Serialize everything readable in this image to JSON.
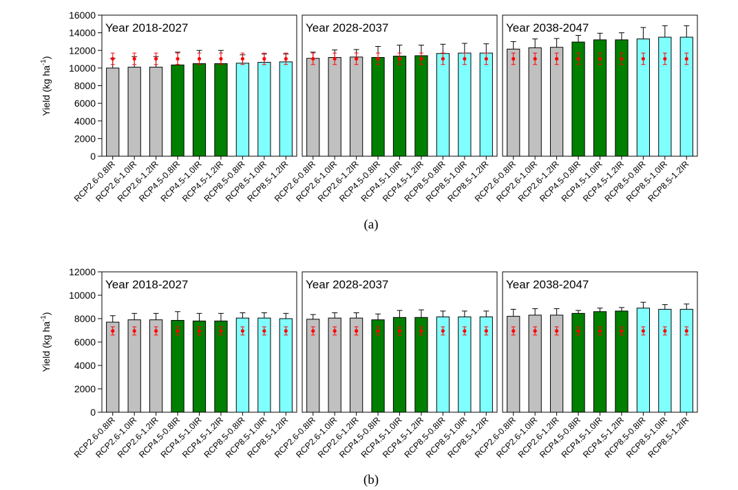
{
  "figure_captions": [
    "(a)",
    "(b)"
  ],
  "colors": {
    "RCP2.6": "#c0c0c0",
    "RCP4.5": "#007f00",
    "RCP8.5": "#80ffff",
    "observed_marker": "#ff0000",
    "axis": "#000000"
  },
  "chart_data": [
    {
      "type": "bar",
      "caption": "(a)",
      "ylabel_main": "Yield (kg ha",
      "ylabel_sup": "-1",
      "ylabel_close": ")",
      "ylim": [
        0,
        16000
      ],
      "yticks": [
        "0",
        "2000",
        "4000",
        "6000",
        "8000",
        "10000",
        "12000",
        "14000",
        "16000"
      ],
      "categories": [
        "RCP2.6-0.8IR",
        "RCP2.6-1.0IR",
        "RCP2.6-1.2IR",
        "RCP4.5-0.8IR",
        "RCP4.5-1.0IR",
        "RCP4.5-1.2IR",
        "RCP8.5-0.8IR",
        "RCP8.5-1.0IR",
        "RCP8.5-1.2IR"
      ],
      "scenario_of_category": [
        "RCP2.6",
        "RCP2.6",
        "RCP2.6",
        "RCP4.5",
        "RCP4.5",
        "RCP4.5",
        "RCP8.5",
        "RCP8.5",
        "RCP8.5"
      ],
      "panels": [
        {
          "title": "Year 2018-2027",
          "values": [
            10000,
            10100,
            10100,
            10350,
            10500,
            10500,
            10550,
            10650,
            10700
          ],
          "error_upper": [
            11100,
            11300,
            11300,
            11800,
            12000,
            12000,
            11500,
            11600,
            11600
          ],
          "observed": [
            11050,
            11050,
            11050,
            11050,
            11050,
            11050,
            11050,
            11050,
            11050
          ],
          "observed_err": [
            650,
            650,
            650,
            650,
            650,
            650,
            650,
            650,
            650
          ]
        },
        {
          "title": "Year 2028-2037",
          "values": [
            11100,
            11200,
            11250,
            11200,
            11350,
            11400,
            11650,
            11700,
            11700
          ],
          "error_upper": [
            11800,
            12050,
            12100,
            12450,
            12600,
            12600,
            12700,
            12800,
            12750
          ],
          "observed": [
            11050,
            11050,
            11050,
            11050,
            11050,
            11050,
            11050,
            11050,
            11050
          ],
          "observed_err": [
            650,
            650,
            650,
            650,
            650,
            650,
            650,
            650,
            650
          ]
        },
        {
          "title": "Year 2038-2047",
          "values": [
            12150,
            12300,
            12350,
            12950,
            13200,
            13200,
            13300,
            13500,
            13500
          ],
          "error_upper": [
            13000,
            13300,
            13350,
            13700,
            13950,
            14000,
            14600,
            14800,
            14800
          ],
          "observed": [
            11050,
            11050,
            11050,
            11050,
            11050,
            11050,
            11050,
            11050,
            11050
          ],
          "observed_err": [
            650,
            650,
            650,
            650,
            650,
            650,
            650,
            650,
            650
          ]
        }
      ]
    },
    {
      "type": "bar",
      "caption": "(b)",
      "ylabel_main": "Yield (kg ha",
      "ylabel_sup": "-1",
      "ylabel_close": ")",
      "ylim": [
        0,
        12000
      ],
      "yticks": [
        "0",
        "2000",
        "4000",
        "6000",
        "8000",
        "10000",
        "12000"
      ],
      "categories": [
        "RCP2.6-0.8IR",
        "RCP2.6-1.0IR",
        "RCP2.6-1.2IR",
        "RCP4.5-0.8IR",
        "RCP4.5-1.0IR",
        "RCP4.5-1.2IR",
        "RCP8.5-0.8IR",
        "RCP8.5-1.0IR",
        "RCP8.5-1.2IR"
      ],
      "scenario_of_category": [
        "RCP2.6",
        "RCP2.6",
        "RCP2.6",
        "RCP4.5",
        "RCP4.5",
        "RCP4.5",
        "RCP8.5",
        "RCP8.5",
        "RCP8.5"
      ],
      "panels": [
        {
          "title": "Year 2018-2027",
          "values": [
            7700,
            7900,
            7900,
            7850,
            7800,
            7800,
            8050,
            8050,
            8000
          ],
          "error_upper": [
            8250,
            8450,
            8450,
            8600,
            8450,
            8450,
            8500,
            8500,
            8450
          ],
          "observed": [
            6950,
            6950,
            6950,
            6950,
            6950,
            6950,
            6950,
            6950,
            6950
          ],
          "observed_err": [
            350,
            350,
            350,
            350,
            350,
            350,
            350,
            350,
            350
          ]
        },
        {
          "title": "Year 2028-2037",
          "values": [
            7950,
            8050,
            8050,
            7900,
            8100,
            8100,
            8150,
            8150,
            8150
          ],
          "error_upper": [
            8350,
            8500,
            8500,
            8400,
            8700,
            8750,
            8650,
            8650,
            8650
          ],
          "observed": [
            6950,
            6950,
            6950,
            6950,
            6950,
            6950,
            6950,
            6950,
            6950
          ],
          "observed_err": [
            350,
            350,
            350,
            350,
            350,
            350,
            350,
            350,
            350
          ]
        },
        {
          "title": "Year 2038-2047",
          "values": [
            8200,
            8300,
            8300,
            8450,
            8600,
            8650,
            8900,
            8800,
            8800
          ],
          "error_upper": [
            8800,
            8850,
            8850,
            8700,
            8900,
            8950,
            9400,
            9200,
            9250
          ],
          "observed": [
            6950,
            6950,
            6950,
            6950,
            6950,
            6950,
            6950,
            6950,
            6950
          ],
          "observed_err": [
            350,
            350,
            350,
            350,
            350,
            350,
            350,
            350,
            350
          ]
        }
      ]
    }
  ]
}
